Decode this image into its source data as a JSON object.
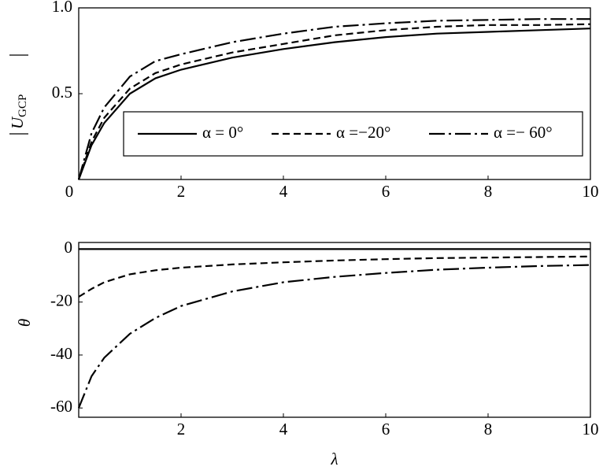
{
  "chart_data": [
    {
      "type": "line",
      "ylabel": "U",
      "ylabel_sub": "GCP",
      "x": [
        0,
        0.25,
        0.5,
        1,
        1.5,
        2,
        3,
        4,
        5,
        6,
        7,
        8,
        9,
        10
      ],
      "series": [
        {
          "name": "α = 0°",
          "color": "#000000",
          "linestyle": "solid",
          "values": [
            0,
            0.2,
            0.33,
            0.5,
            0.59,
            0.64,
            0.71,
            0.76,
            0.8,
            0.83,
            0.85,
            0.86,
            0.87,
            0.88
          ]
        },
        {
          "name": "α =−20°",
          "color": "#000000",
          "linestyle": "dashed",
          "values": [
            0,
            0.22,
            0.36,
            0.53,
            0.62,
            0.67,
            0.74,
            0.79,
            0.84,
            0.87,
            0.89,
            0.9,
            0.9,
            0.905
          ]
        },
        {
          "name": "α =− 60°",
          "color": "#000000",
          "linestyle": "dashdot",
          "values": [
            0,
            0.27,
            0.42,
            0.6,
            0.69,
            0.73,
            0.8,
            0.85,
            0.89,
            0.91,
            0.925,
            0.93,
            0.935,
            0.935
          ]
        }
      ],
      "xlim": [
        0,
        10
      ],
      "xticks": [
        0,
        2,
        4,
        6,
        8,
        10
      ],
      "ylim": [
        0,
        1
      ],
      "yticks": [
        0.5,
        {
          "value": 1,
          "label": "1.0"
        }
      ],
      "grid": false,
      "legend": "lower right"
    },
    {
      "type": "line",
      "xlabel": "λ",
      "ylabel": "θ",
      "x": [
        0,
        0.25,
        0.5,
        1,
        1.5,
        2,
        3,
        4,
        5,
        6,
        7,
        8,
        9,
        10
      ],
      "series": [
        {
          "name": "α = 0°",
          "color": "#000000",
          "linestyle": "solid",
          "values": [
            0,
            0,
            0,
            0,
            0,
            0,
            0,
            0,
            0,
            0,
            0,
            0,
            0,
            0
          ]
        },
        {
          "name": "α =−20°",
          "color": "#000000",
          "linestyle": "dashed",
          "values": [
            -18,
            -15,
            -12.5,
            -9.5,
            -8,
            -7,
            -5.8,
            -5,
            -4.3,
            -3.8,
            -3.4,
            -3.2,
            -3,
            -2.8
          ]
        },
        {
          "name": "α =− 60°",
          "color": "#000000",
          "linestyle": "dashdot",
          "values": [
            -60,
            -48,
            -41,
            -32,
            -26,
            -21.5,
            -16,
            -12.5,
            -10.5,
            -9,
            -7.8,
            -7,
            -6.4,
            -6
          ]
        }
      ],
      "xlim": [
        0,
        10
      ],
      "xticks": [
        2,
        4,
        6,
        8,
        10
      ],
      "ylim": [
        -63.5,
        2.5
      ],
      "yticks": [
        0,
        -20,
        -40,
        -60
      ],
      "grid": false
    }
  ]
}
